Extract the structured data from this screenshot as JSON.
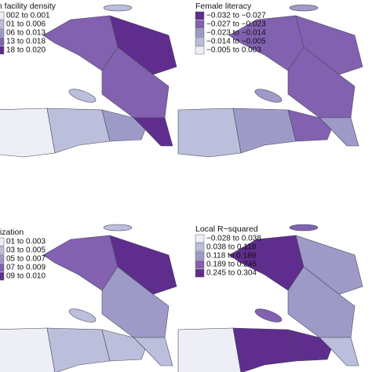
{
  "panels": [
    {
      "legend": {
        "title": "th facility density",
        "items": [
          "002 to 0.001",
          "01 to 0.006",
          "06 to 0.013",
          "13 to 0.018",
          "18 to 0.020"
        ],
        "colors": [
          "#edeef6",
          "#bcbfdc",
          "#9e9ac8",
          "#8261b0",
          "#5f2d8e"
        ]
      }
    },
    {
      "legend": {
        "title": "Female literacy",
        "items": [
          "−0.032 to −0.027",
          "−0.027 to −0.023",
          "−0.023 to −0.014",
          "−0.014 to −0.005",
          "−0.005 to 0.003"
        ],
        "colors": [
          "#5f2d8e",
          "#8261b0",
          "#9e9ac8",
          "#bcbfdc",
          "#edeef6"
        ]
      }
    },
    {
      "legend": {
        "title": "nization",
        "items": [
          "01 to 0.003",
          "03 to 0.005",
          "05 to 0.007",
          "07 to 0.009",
          "09 to 0.010"
        ],
        "colors": [
          "#edeef6",
          "#bcbfdc",
          "#9e9ac8",
          "#8261b0",
          "#5f2d8e"
        ]
      }
    },
    {
      "legend": {
        "title": "Local R−squared",
        "items": [
          "−0.028 to 0.038",
          "0.038 to 0.118",
          "0.118 to 0.189",
          "0.189 to 0.245",
          "0.245 to 0.304"
        ],
        "colors": [
          "#edeef6",
          "#bcbfdc",
          "#9e9ac8",
          "#8261b0",
          "#5f2d8e"
        ]
      }
    }
  ]
}
